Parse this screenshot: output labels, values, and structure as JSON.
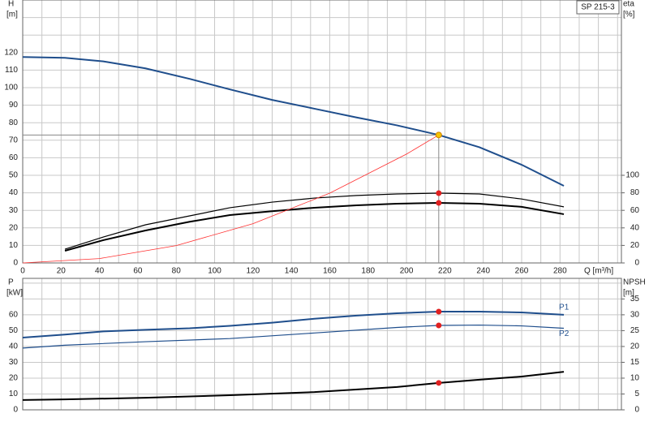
{
  "chart_data": [
    {
      "type": "line",
      "title": "SP 215-3",
      "x_label": "Q [m³/h]",
      "y_label": "H",
      "y_unit": "[m]",
      "y2_label": "eta",
      "y2_unit": "[%]",
      "xlim": [
        0,
        312
      ],
      "xticks": [
        0,
        20,
        40,
        60,
        80,
        100,
        120,
        140,
        160,
        180,
        200,
        220,
        240,
        260,
        280
      ],
      "x_minor_ticks": [
        10,
        30,
        50,
        70,
        90,
        110,
        130,
        150,
        170,
        190,
        210,
        230,
        250,
        270,
        290,
        300,
        310
      ],
      "ylim": [
        0,
        150
      ],
      "yticks": [
        0,
        10,
        20,
        30,
        40,
        50,
        60,
        70,
        80,
        90,
        100,
        110,
        120
      ],
      "y_minor_ticks": [
        130,
        140,
        150
      ],
      "y2lim": [
        0,
        300
      ],
      "y2ticks": [
        0,
        20,
        40,
        60,
        80,
        100
      ],
      "grid": true,
      "duty_q": 216.8,
      "series": [
        {
          "color": "#1f4e8c",
          "width": 2,
          "x": [
            0,
            22,
            42,
            64,
            87,
            108,
            130,
            152,
            174,
            195,
            216.8,
            238,
            260,
            282
          ],
          "values": [
            117.5,
            117,
            115,
            111,
            105,
            99,
            93,
            88,
            83,
            78.5,
            73,
            66,
            56,
            44
          ],
          "duty_value": 73,
          "duty_color": "#f5c400",
          "crosshair": true
        },
        {
          "color": "#000000",
          "width": 1.2,
          "axis": "y2",
          "x": [
            22,
            42,
            64,
            87,
            108,
            130,
            152,
            174,
            195,
            216.8,
            238,
            260,
            282
          ],
          "values": [
            15.7,
            29.6,
            43.5,
            53.7,
            63,
            69.4,
            74,
            77,
            78.7,
            79.6,
            78.7,
            73,
            64
          ],
          "duty_value": 79.6,
          "duty_color": "#e02020"
        },
        {
          "color": "#000000",
          "width": 2,
          "axis": "y2",
          "x": [
            22,
            42,
            64,
            87,
            108,
            130,
            152,
            174,
            195,
            216.8,
            238,
            260,
            282
          ],
          "values": [
            13.9,
            26,
            37,
            47,
            54.6,
            59,
            63,
            65.7,
            67.6,
            68.5,
            67.6,
            64,
            55.6
          ],
          "duty_value": 68.5,
          "duty_color": "#e02020"
        },
        {
          "color": "#ff3030",
          "width": 0.8,
          "x": [
            0,
            40,
            80,
            120,
            160,
            200,
            216.8
          ],
          "values": [
            0,
            2.5,
            9.9,
            22.4,
            39.8,
            62.1,
            73
          ]
        }
      ]
    },
    {
      "type": "line",
      "y_label": "P",
      "y_unit": "[kW]",
      "y2_label": "NPSH",
      "y2_unit": "[m]",
      "xlim": [
        0,
        312
      ],
      "x_minor_ticks": [
        10,
        20,
        30,
        40,
        50,
        60,
        70,
        80,
        90,
        100,
        110,
        120,
        130,
        140,
        150,
        160,
        170,
        180,
        190,
        200,
        210,
        220,
        230,
        240,
        250,
        260,
        270,
        280,
        290,
        300,
        310
      ],
      "ylim": [
        0,
        83
      ],
      "yticks": [
        0,
        10,
        20,
        30,
        40,
        50,
        60
      ],
      "y_minor_ticks": [
        70,
        80
      ],
      "y2lim": [
        0,
        41.5
      ],
      "y2ticks": [
        0,
        5,
        10,
        15,
        20,
        25,
        30,
        35
      ],
      "grid": true,
      "duty_q": 216.8,
      "series": [
        {
          "name": "P1",
          "color": "#1f4e8c",
          "width": 2,
          "x": [
            0,
            22,
            42,
            64,
            87,
            108,
            130,
            152,
            174,
            195,
            216.8,
            238,
            260,
            282
          ],
          "values": [
            45.6,
            47.5,
            49.5,
            50.5,
            51.5,
            53,
            55,
            57.5,
            59.5,
            61,
            62,
            62,
            61.5,
            60
          ],
          "duty_value": 62,
          "duty_color": "#e02020"
        },
        {
          "name": "P2",
          "color": "#1f4e8c",
          "width": 1.2,
          "x": [
            0,
            22,
            64,
            108,
            152,
            195,
            216.8,
            238,
            260,
            282
          ],
          "values": [
            39,
            40.8,
            43,
            45,
            48.5,
            52,
            53.3,
            53.5,
            53,
            51.5
          ],
          "duty_value": 53.3,
          "duty_color": "#e02020"
        },
        {
          "color": "#000000",
          "width": 2,
          "axis": "y2",
          "x": [
            0,
            22,
            64,
            108,
            152,
            195,
            216.8,
            238,
            260,
            282
          ],
          "values": [
            3.1,
            3.3,
            3.8,
            4.6,
            5.6,
            7.2,
            8.5,
            9.5,
            10.5,
            12
          ],
          "duty_value": 8.5,
          "duty_color": "#e02020"
        }
      ]
    }
  ]
}
